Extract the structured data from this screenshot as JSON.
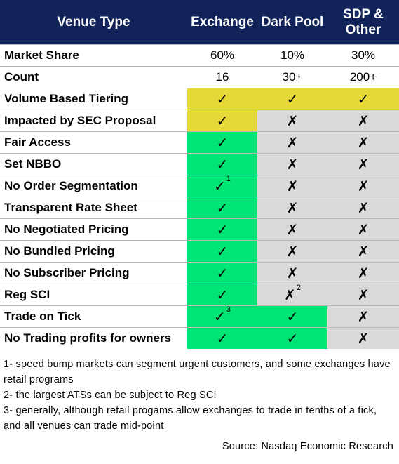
{
  "header": {
    "col0": "Venue Type",
    "col1": "Exchange",
    "col2": "Dark Pool",
    "col3_line1": "SDP &",
    "col3_line2": "Other"
  },
  "rows": [
    {
      "label": "Market Share",
      "cells": [
        {
          "text": "60%",
          "bg": "none"
        },
        {
          "text": "10%",
          "bg": "none"
        },
        {
          "text": "30%",
          "bg": "none"
        }
      ]
    },
    {
      "label": "Count",
      "cells": [
        {
          "text": "16",
          "bg": "none"
        },
        {
          "text": "30+",
          "bg": "none"
        },
        {
          "text": "200+",
          "bg": "none"
        }
      ]
    },
    {
      "label": "Volume Based Tiering",
      "cells": [
        {
          "text": "✓",
          "bg": "yellow"
        },
        {
          "text": "✓",
          "bg": "yellow"
        },
        {
          "text": "✓",
          "bg": "yellow"
        }
      ]
    },
    {
      "label": "Impacted by SEC Proposal",
      "cells": [
        {
          "text": "✓",
          "bg": "yellow"
        },
        {
          "text": "✗",
          "bg": "grey"
        },
        {
          "text": "✗",
          "bg": "grey"
        }
      ]
    },
    {
      "label": "Fair Access",
      "cells": [
        {
          "text": "✓",
          "bg": "green"
        },
        {
          "text": "✗",
          "bg": "grey"
        },
        {
          "text": "✗",
          "bg": "grey"
        }
      ]
    },
    {
      "label": "Set NBBO",
      "cells": [
        {
          "text": "✓",
          "bg": "green"
        },
        {
          "text": "✗",
          "bg": "grey"
        },
        {
          "text": "✗",
          "bg": "grey"
        }
      ]
    },
    {
      "label": "No Order Segmentation",
      "cells": [
        {
          "text": "✓",
          "bg": "green",
          "fn": "1"
        },
        {
          "text": "✗",
          "bg": "grey"
        },
        {
          "text": "✗",
          "bg": "grey"
        }
      ]
    },
    {
      "label": "Transparent Rate Sheet",
      "cells": [
        {
          "text": "✓",
          "bg": "green"
        },
        {
          "text": "✗",
          "bg": "grey"
        },
        {
          "text": "✗",
          "bg": "grey"
        }
      ]
    },
    {
      "label": "No Negotiated Pricing",
      "cells": [
        {
          "text": "✓",
          "bg": "green"
        },
        {
          "text": "✗",
          "bg": "grey"
        },
        {
          "text": "✗",
          "bg": "grey"
        }
      ]
    },
    {
      "label": "No Bundled Pricing",
      "cells": [
        {
          "text": "✓",
          "bg": "green"
        },
        {
          "text": "✗",
          "bg": "grey"
        },
        {
          "text": "✗",
          "bg": "grey"
        }
      ]
    },
    {
      "label": "No Subscriber Pricing",
      "cells": [
        {
          "text": "✓",
          "bg": "green"
        },
        {
          "text": "✗",
          "bg": "grey"
        },
        {
          "text": "✗",
          "bg": "grey"
        }
      ]
    },
    {
      "label": "Reg SCI",
      "cells": [
        {
          "text": "✓",
          "bg": "green"
        },
        {
          "text": "✗",
          "bg": "grey",
          "fn": "2"
        },
        {
          "text": "✗",
          "bg": "grey"
        }
      ]
    },
    {
      "label": "Trade on Tick",
      "cells": [
        {
          "text": "✓",
          "bg": "green",
          "fn": "3"
        },
        {
          "text": "✓",
          "bg": "green"
        },
        {
          "text": "✗",
          "bg": "grey"
        }
      ]
    },
    {
      "label": "No Trading profits for owners",
      "cells": [
        {
          "text": "✓",
          "bg": "green"
        },
        {
          "text": "✓",
          "bg": "green"
        },
        {
          "text": "✗",
          "bg": "grey"
        }
      ]
    }
  ],
  "colors": {
    "header_bg": "#12235a",
    "yellow": "#e6d839",
    "green": "#00e676",
    "grey": "#d9d9d9"
  },
  "notes": [
    "1- speed bump markets can segment urgent customers, and some exchanges have retail programs",
    "2- the largest ATSs can be subject to Reg SCI",
    "3- generally, although retail progams allow exchanges to trade in tenths of a tick, and all venues can trade mid-point"
  ],
  "source": "Source: Nasdaq Economic Research"
}
